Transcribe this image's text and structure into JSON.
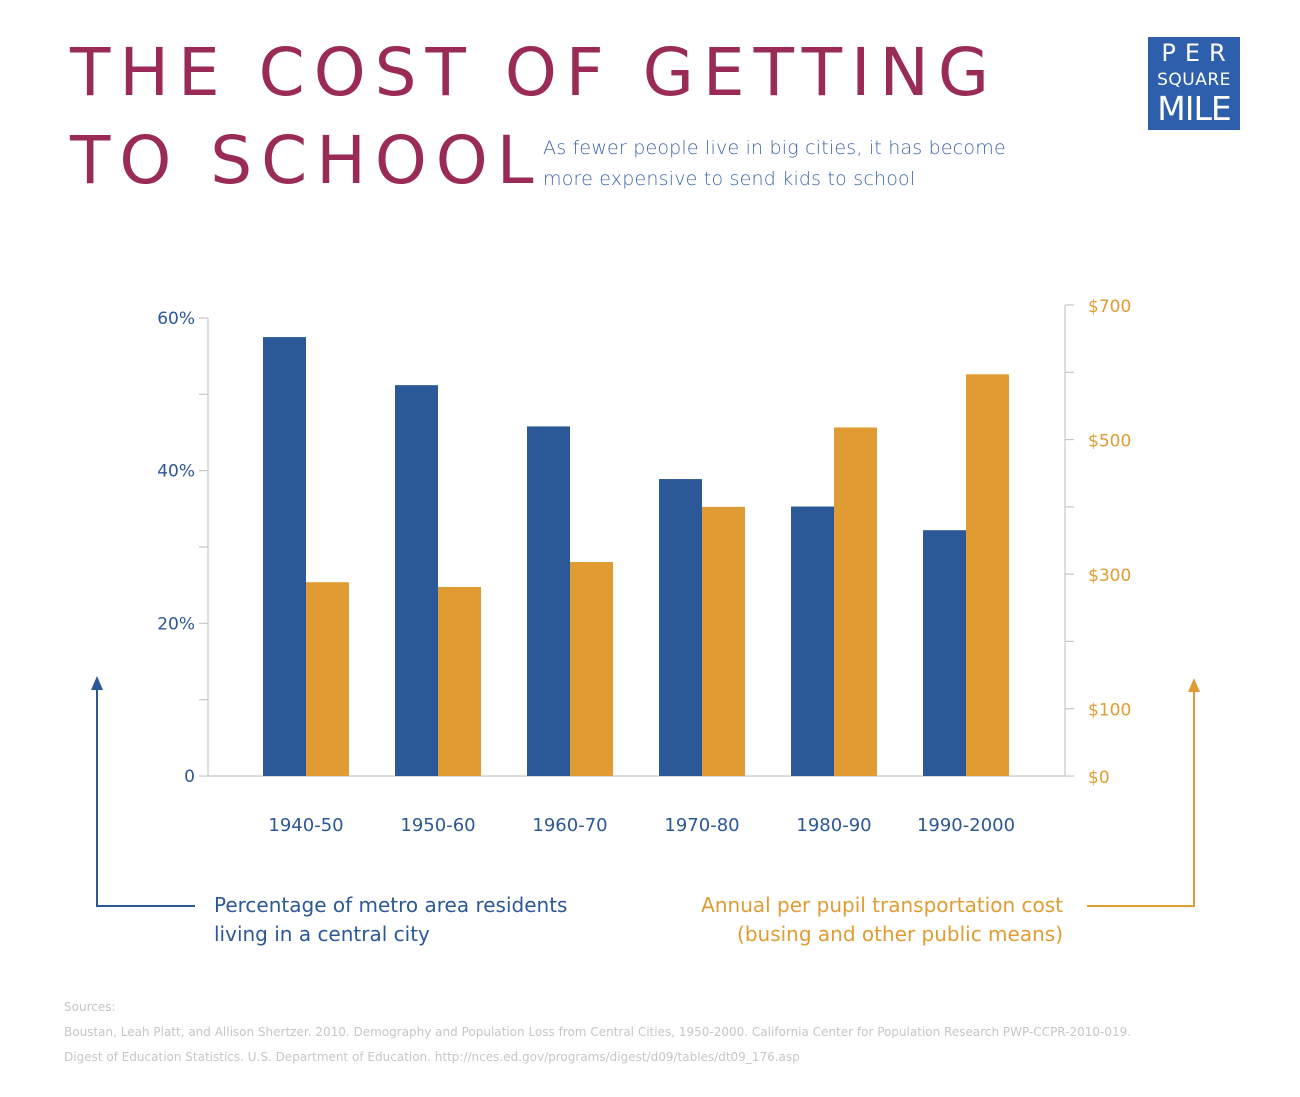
{
  "header": {
    "title_line1": "THE COST OF GETTING",
    "title_line2": "TO SCHOOL",
    "subtitle_line1": "As fewer people live in big cities, it has become",
    "subtitle_line2": "more expensive to send kids to school"
  },
  "logo": {
    "line1": "PER",
    "line2": "SQUARE",
    "line3": "MILE",
    "color": "#2e5fac"
  },
  "legend": {
    "left_line1": "Percentage of metro area residents",
    "left_line2": "living in a central city",
    "right_line1": "Annual per pupil transportation cost",
    "right_line2": "(busing and other public means)"
  },
  "sources": {
    "label": "Sources:",
    "line1": "Boustan, Leah Platt, and Allison Shertzer. 2010. Demography and Population Loss from Central Cities, 1950-2000. California Center for Population Research PWP-CCPR-2010-019.",
    "line2": "Digest of Education Statistics. U.S. Department of Education. http://nces.ed.gov/programs/digest/d09/tables/dt09_176.asp"
  },
  "colors": {
    "blue": "#2b5896",
    "orange": "#e09c33",
    "title": "#9a2b56",
    "axis": "#c8c8c8"
  },
  "chart_data": {
    "type": "bar",
    "categories": [
      "1940-50",
      "1950-60",
      "1960-70",
      "1970-80",
      "1980-90",
      "1990-2000"
    ],
    "series": [
      {
        "axis": "left",
        "color": "#2b5896",
        "values": [
          57.5,
          51.2,
          45.8,
          38.9,
          35.3,
          32.2
        ]
      },
      {
        "axis": "right",
        "color": "#e09c33",
        "values": [
          288,
          281,
          318,
          400,
          518,
          597
        ]
      }
    ],
    "y_left": {
      "ylim": [
        0,
        60
      ],
      "unit": "%",
      "tick_labels": [
        "0",
        "20%",
        "40%",
        "60%"
      ],
      "tick_values": [
        0,
        20,
        40,
        60
      ]
    },
    "y_right": {
      "ylim": [
        0,
        700
      ],
      "unit": "$",
      "tick_labels": [
        "$0",
        "$100",
        "$300",
        "$500",
        "$700"
      ],
      "tick_values": [
        0,
        100,
        300,
        500,
        700
      ]
    },
    "grid": false
  }
}
